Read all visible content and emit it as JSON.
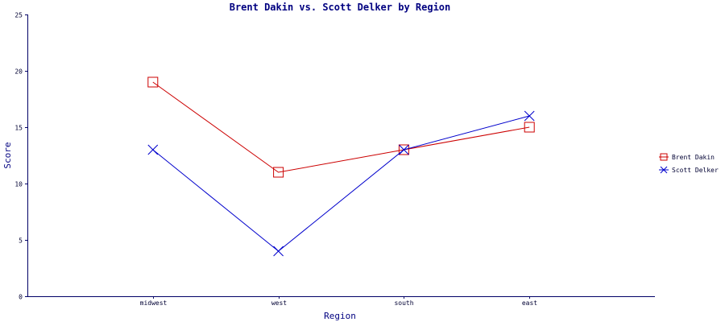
{
  "chart_data": {
    "type": "line",
    "title": "Brent Dakin vs. Scott Delker by Region",
    "xlabel": "Region",
    "ylabel": "Score",
    "categories": [
      "midwest",
      "west",
      "south",
      "east"
    ],
    "ylim": [
      0,
      25
    ],
    "yticks": [
      0,
      5,
      10,
      15,
      20,
      25
    ],
    "grid": false,
    "legend_position": "right",
    "series": [
      {
        "name": "Brent Dakin",
        "values": [
          19,
          11,
          13,
          15
        ],
        "color": "#cc0000",
        "marker": "square"
      },
      {
        "name": "Scott Delker",
        "values": [
          13,
          4,
          13,
          16
        ],
        "color": "#0000cc",
        "marker": "x"
      }
    ]
  }
}
